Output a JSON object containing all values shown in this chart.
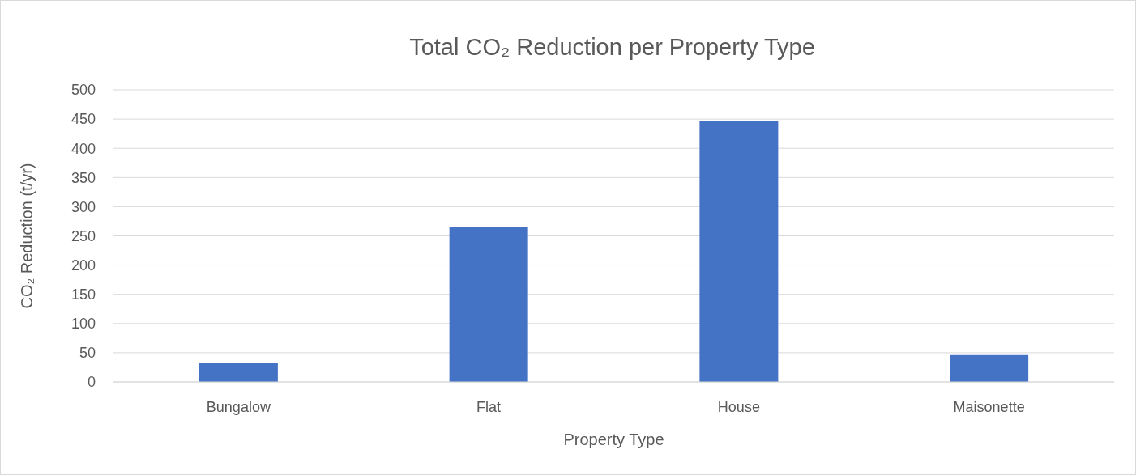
{
  "chart_data": {
    "type": "bar",
    "title": "Total CO₂ Reduction per Property Type",
    "xlabel": "Property Type",
    "ylabel": "CO₂ Reduction (t/yr)",
    "categories": [
      "Bungalow",
      "Flat",
      "House",
      "Maisonette"
    ],
    "values": [
      33,
      265,
      447,
      46
    ],
    "color": "#4472c4",
    "ylim": [
      0,
      500
    ],
    "yticks": [
      0,
      50,
      100,
      150,
      200,
      250,
      300,
      350,
      400,
      450,
      500
    ],
    "grid": "y"
  }
}
